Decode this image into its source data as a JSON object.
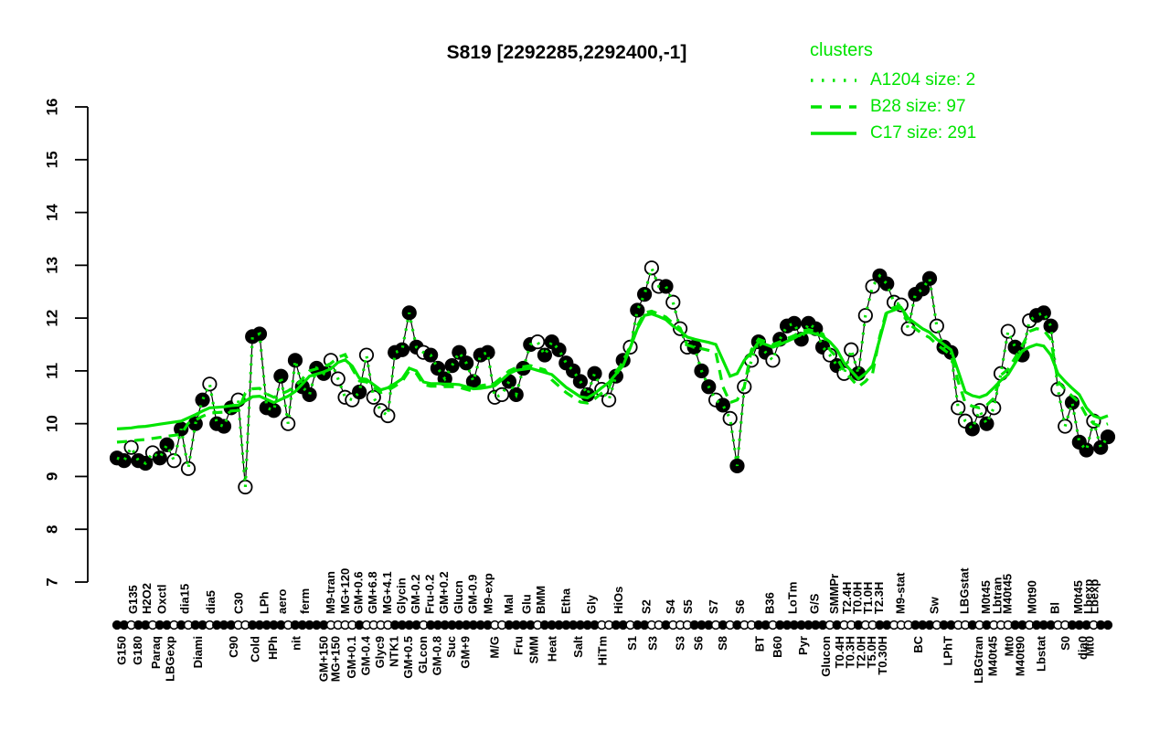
{
  "title": "S819 [2292285,2292400,-1]",
  "colors": {
    "cluster_green": "#00e400",
    "points": "#000000",
    "background": "#ffffff"
  },
  "legend": {
    "title": "clusters",
    "entries": [
      {
        "label": "A1204 size: 2",
        "style": "dotted"
      },
      {
        "label": "B28 size: 97",
        "style": "dashed"
      },
      {
        "label": "C17 size: 291",
        "style": "solid"
      }
    ]
  },
  "chart_data": {
    "type": "line",
    "title": "S819 [2292285,2292400,-1]",
    "ylabel": "",
    "xlabel": "",
    "ylim": [
      7,
      16
    ],
    "yticks": [
      7,
      8,
      9,
      10,
      11,
      12,
      13,
      14,
      15,
      16
    ],
    "grid": false,
    "legend_position": "top-right",
    "x_count": 140,
    "points": {
      "description": "gene expression profile, black circles (filled/open) connected by thin line",
      "values": [
        9.35,
        9.3,
        9.55,
        9.3,
        9.25,
        9.45,
        9.35,
        9.6,
        9.3,
        9.9,
        9.15,
        10.0,
        10.45,
        10.75,
        10.0,
        9.95,
        10.3,
        10.45,
        8.8,
        11.65,
        11.7,
        10.3,
        10.25,
        10.9,
        10.0,
        11.2,
        10.7,
        10.55,
        11.05,
        10.95,
        11.2,
        10.85,
        10.5,
        10.45,
        10.6,
        11.3,
        10.5,
        10.25,
        10.15,
        11.35,
        11.4,
        12.1,
        11.45,
        11.35,
        11.3,
        11.05,
        10.85,
        11.1,
        11.35,
        11.15,
        10.8,
        11.3,
        11.35,
        10.5,
        10.55,
        10.8,
        10.55,
        11.05,
        11.5,
        11.55,
        11.3,
        11.55,
        11.4,
        11.15,
        11.0,
        10.8,
        10.55,
        10.95,
        10.65,
        10.45,
        10.9,
        11.2,
        11.45,
        12.15,
        12.45,
        12.95,
        12.6,
        12.6,
        12.3,
        11.8,
        11.45,
        11.45,
        11.0,
        10.7,
        10.45,
        10.35,
        10.1,
        9.2,
        10.7,
        11.2,
        11.55,
        11.35,
        11.2,
        11.6,
        11.85,
        11.9,
        11.6,
        11.9,
        11.8,
        11.45,
        11.3,
        11.1,
        10.95,
        11.4,
        10.95,
        12.05,
        12.6,
        12.8,
        12.65,
        12.3,
        12.25,
        11.8,
        12.45,
        12.55,
        12.75,
        11.85,
        11.45,
        11.35,
        10.3,
        10.05,
        9.9,
        10.25,
        10.0,
        10.3,
        10.95,
        11.75,
        11.45,
        11.3,
        11.95,
        12.05,
        12.1,
        11.85,
        10.65,
        9.95,
        10.4,
        9.65,
        9.5,
        10.05,
        9.55,
        9.75
      ],
      "filled": [
        1,
        1,
        0,
        1,
        1,
        0,
        1,
        1,
        0,
        1,
        0,
        1,
        1,
        0,
        1,
        1,
        1,
        0,
        0,
        1,
        1,
        1,
        1,
        1,
        0,
        1,
        1,
        1,
        1,
        1,
        0,
        0,
        0,
        0,
        1,
        0,
        0,
        0,
        0,
        1,
        1,
        1,
        1,
        0,
        1,
        1,
        1,
        1,
        1,
        1,
        1,
        1,
        1,
        0,
        0,
        1,
        1,
        1,
        1,
        0,
        1,
        1,
        1,
        1,
        1,
        1,
        1,
        1,
        0,
        0,
        1,
        1,
        0,
        1,
        1,
        0,
        0,
        1,
        0,
        0,
        0,
        1,
        1,
        1,
        0,
        1,
        0,
        1,
        0,
        0,
        1,
        1,
        0,
        1,
        1,
        1,
        1,
        1,
        1,
        1,
        0,
        1,
        0,
        0,
        1,
        0,
        0,
        1,
        1,
        0,
        0,
        0,
        1,
        1,
        1,
        0,
        1,
        1,
        0,
        0,
        1,
        0,
        1,
        0,
        0,
        0,
        1,
        1,
        0,
        1,
        1,
        1,
        0,
        0,
        1,
        1,
        1,
        0,
        1,
        1
      ]
    },
    "series": [
      {
        "name": "A1204 size: 2",
        "style": "dotted",
        "color": "#00e400",
        "follows_points": true,
        "values": []
      },
      {
        "name": "B28 size: 97",
        "style": "dashed",
        "color": "#00e400",
        "values": [
          9.65,
          9.66,
          9.67,
          9.69,
          9.7,
          9.72,
          9.74,
          9.76,
          9.78,
          9.8,
          10.01,
          10.07,
          10.14,
          10.2,
          10.21,
          10.22,
          10.24,
          10.25,
          10.58,
          10.66,
          10.67,
          10.56,
          10.5,
          10.56,
          10.62,
          10.71,
          10.85,
          11.0,
          11.04,
          11.08,
          11.14,
          11.26,
          11.31,
          11.04,
          10.81,
          10.79,
          10.69,
          10.59,
          10.63,
          10.71,
          10.8,
          11.0,
          10.95,
          10.74,
          10.71,
          10.71,
          10.7,
          10.7,
          10.69,
          10.65,
          10.61,
          10.72,
          10.74,
          10.77,
          10.88,
          11.0,
          11.06,
          11.08,
          11.1,
          11.06,
          11.02,
          10.83,
          10.71,
          10.59,
          10.5,
          10.41,
          10.39,
          10.47,
          10.58,
          10.68,
          10.99,
          11.15,
          11.49,
          11.85,
          12.1,
          12.13,
          12.08,
          12.02,
          11.9,
          11.81,
          11.49,
          11.45,
          11.42,
          11.39,
          11.35,
          10.7,
          10.4,
          10.45,
          10.7,
          11.4,
          11.6,
          11.55,
          11.5,
          11.55,
          11.61,
          11.67,
          11.75,
          11.78,
          11.75,
          11.7,
          11.4,
          11.25,
          11.0,
          10.85,
          10.7,
          10.8,
          10.95,
          11.65,
          12.15,
          12.2,
          12.25,
          11.9,
          11.8,
          11.7,
          11.63,
          11.5,
          11.4,
          11.3,
          10.8,
          10.4,
          10.33,
          10.3,
          10.35,
          10.48,
          10.92,
          11.03,
          11.25,
          11.48,
          11.75,
          11.8,
          11.77,
          11.6,
          10.8,
          10.65,
          10.52,
          10.4,
          10.15,
          10.0,
          9.95,
          10.0
        ]
      },
      {
        "name": "C17 size: 291",
        "style": "solid",
        "color": "#00e400",
        "values": [
          9.9,
          9.91,
          9.92,
          9.94,
          9.95,
          9.97,
          9.99,
          10.01,
          10.03,
          10.05,
          10.11,
          10.17,
          10.24,
          10.3,
          10.31,
          10.32,
          10.34,
          10.35,
          10.43,
          10.51,
          10.52,
          10.46,
          10.4,
          10.46,
          10.52,
          10.61,
          10.75,
          10.9,
          10.94,
          10.98,
          11.04,
          11.16,
          11.21,
          11.09,
          10.86,
          10.84,
          10.74,
          10.64,
          10.68,
          10.76,
          10.85,
          11.05,
          11.0,
          10.79,
          10.76,
          10.76,
          10.75,
          10.75,
          10.74,
          10.7,
          10.66,
          10.67,
          10.69,
          10.72,
          10.83,
          10.95,
          11.01,
          11.03,
          11.05,
          11.01,
          10.97,
          10.93,
          10.81,
          10.69,
          10.6,
          10.51,
          10.49,
          10.57,
          10.68,
          10.78,
          10.94,
          11.1,
          11.44,
          11.8,
          12.05,
          12.08,
          12.03,
          11.97,
          11.85,
          11.76,
          11.64,
          11.6,
          11.57,
          11.54,
          11.5,
          11.2,
          10.9,
          10.95,
          11.2,
          11.35,
          11.55,
          11.5,
          11.45,
          11.5,
          11.56,
          11.62,
          11.7,
          11.73,
          11.7,
          11.65,
          11.55,
          11.4,
          11.15,
          11.0,
          10.85,
          10.95,
          11.1,
          11.6,
          12.1,
          12.15,
          12.2,
          12.0,
          11.9,
          11.8,
          11.73,
          11.6,
          11.5,
          11.4,
          11.0,
          10.6,
          10.53,
          10.5,
          10.55,
          10.68,
          10.82,
          10.93,
          11.15,
          11.38,
          11.45,
          11.5,
          11.47,
          11.3,
          10.95,
          10.8,
          10.67,
          10.55,
          10.3,
          10.15,
          10.1,
          10.15
        ]
      }
    ],
    "x_labels_top": [
      {
        "t": "G135",
        "i": 2.4
      },
      {
        "t": "H2O2",
        "i": 4.3
      },
      {
        "t": "Oxctl",
        "i": 6.4
      },
      {
        "t": "dia15",
        "i": 9.6
      },
      {
        "t": "dia5",
        "i": 13.3
      },
      {
        "t": "C30",
        "i": 17.2
      },
      {
        "t": "LPh",
        "i": 20.8
      },
      {
        "t": "aero",
        "i": 23.3
      },
      {
        "t": "ferm",
        "i": 26.5
      },
      {
        "t": "M9-tran",
        "i": 30.1
      },
      {
        "t": "MG+120",
        "i": 32.1
      },
      {
        "t": "GM+0.6",
        "i": 34
      },
      {
        "t": "GM+6.8",
        "i": 36
      },
      {
        "t": "MG+4.1",
        "i": 38
      },
      {
        "t": "Glycin",
        "i": 40
      },
      {
        "t": "GM-0.2",
        "i": 42
      },
      {
        "t": "Fru-0.2",
        "i": 44
      },
      {
        "t": "GM+0.2",
        "i": 46
      },
      {
        "t": "Glucn",
        "i": 48
      },
      {
        "t": "GM-0.9",
        "i": 50
      },
      {
        "t": "M9-exp",
        "i": 52.2
      },
      {
        "t": "Mal",
        "i": 55.1
      },
      {
        "t": "Glu",
        "i": 57.6
      },
      {
        "t": "BMM",
        "i": 59.6
      },
      {
        "t": "Etha",
        "i": 63.1
      },
      {
        "t": "Gly",
        "i": 66.7
      },
      {
        "t": "HiOs",
        "i": 70.5
      },
      {
        "t": "S2",
        "i": 74.4
      },
      {
        "t": "S4",
        "i": 77.8
      },
      {
        "t": "S5",
        "i": 80.2
      },
      {
        "t": "S7",
        "i": 83.8
      },
      {
        "t": "S6",
        "i": 87.5
      },
      {
        "t": "B36",
        "i": 91.7
      },
      {
        "t": "LoTm",
        "i": 94.9
      },
      {
        "t": "G/S",
        "i": 98
      },
      {
        "t": "SMMPr",
        "i": 100.7
      },
      {
        "t": "T2.4H",
        "i": 102.5
      },
      {
        "t": "T0.0H",
        "i": 104
      },
      {
        "t": "T1.0H",
        "i": 105.5
      },
      {
        "t": "T2.3H",
        "i": 107
      },
      {
        "t": "M9-stat",
        "i": 110
      },
      {
        "t": "Sw",
        "i": 114.8
      },
      {
        "t": "LBGstat",
        "i": 119
      },
      {
        "t": "M0t45",
        "i": 122
      },
      {
        "t": "Lbtran",
        "i": 123.6
      },
      {
        "t": "M40t45",
        "i": 125
      },
      {
        "t": "M0t90",
        "i": 128.5
      },
      {
        "t": "Bl",
        "i": 131.7
      },
      {
        "t": "M0t45",
        "i": 135
      },
      {
        "t": "Lbexp",
        "i": 136.4
      },
      {
        "t": "Lbexp",
        "i": 137.2
      }
    ],
    "x_labels_bottom": [
      {
        "t": "G150",
        "i": 0.8
      },
      {
        "t": "G180",
        "i": 3
      },
      {
        "t": "Paraq",
        "i": 5.6
      },
      {
        "t": "LBGexp",
        "i": 7.6
      },
      {
        "t": "Diami",
        "i": 11.5
      },
      {
        "t": "C90",
        "i": 16.5
      },
      {
        "t": "Cold",
        "i": 19.5
      },
      {
        "t": "HPh",
        "i": 22
      },
      {
        "t": "nit",
        "i": 25.3
      },
      {
        "t": "GM+150",
        "i": 29.1
      },
      {
        "t": "MG+150",
        "i": 30.8
      },
      {
        "t": "GM+0.1",
        "i": 33
      },
      {
        "t": "GM-0.4",
        "i": 35
      },
      {
        "t": "Glyc9",
        "i": 37
      },
      {
        "t": "NTK1",
        "i": 39
      },
      {
        "t": "GM+0.5",
        "i": 41
      },
      {
        "t": "GLcon",
        "i": 43
      },
      {
        "t": "GM-0.8",
        "i": 45
      },
      {
        "t": "Suc",
        "i": 47
      },
      {
        "t": "GM+9",
        "i": 49
      },
      {
        "t": "M/G",
        "i": 53.1
      },
      {
        "t": "Fru",
        "i": 56.4
      },
      {
        "t": "SMM",
        "i": 58.6
      },
      {
        "t": "Heat",
        "i": 61.2
      },
      {
        "t": "Salt",
        "i": 64.8
      },
      {
        "t": "HiTm",
        "i": 68.2
      },
      {
        "t": "S1",
        "i": 72.4
      },
      {
        "t": "S3",
        "i": 75.3
      },
      {
        "t": "S3",
        "i": 79.1
      },
      {
        "t": "S6",
        "i": 81.7
      },
      {
        "t": "S8",
        "i": 85.1
      },
      {
        "t": "BT",
        "i": 90.3
      },
      {
        "t": "B60",
        "i": 92.8
      },
      {
        "t": "Pyr",
        "i": 96.4
      },
      {
        "t": "Glucon",
        "i": 99.6
      },
      {
        "t": "T0.4H",
        "i": 101.5
      },
      {
        "t": "T0.3H",
        "i": 103
      },
      {
        "t": "T2.0H",
        "i": 104.5
      },
      {
        "t": "T5.0H",
        "i": 106
      },
      {
        "t": "T0.30H",
        "i": 107.5
      },
      {
        "t": "BC",
        "i": 112.5
      },
      {
        "t": "LPhT",
        "i": 116.7
      },
      {
        "t": "LBGtran",
        "i": 121
      },
      {
        "t": "M40t45",
        "i": 123
      },
      {
        "t": "Mt0",
        "i": 125.3
      },
      {
        "t": "M40t90",
        "i": 126.8
      },
      {
        "t": "Lbstat",
        "i": 129.8
      },
      {
        "t": "S0",
        "i": 133.2
      },
      {
        "t": "dia0",
        "i": 135.6
      },
      {
        "t": "Mt0",
        "i": 136.6
      }
    ]
  }
}
